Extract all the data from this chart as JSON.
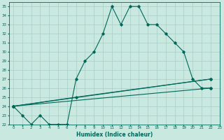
{
  "xlabel": "Humidex (Indice chaleur)",
  "bg_color": "#c8e8e0",
  "grid_color": "#a8ccc8",
  "line_color": "#006858",
  "xlim": [
    -0.5,
    23
  ],
  "ylim": [
    22,
    35.5
  ],
  "xticks": [
    0,
    1,
    2,
    3,
    4,
    5,
    6,
    7,
    8,
    9,
    10,
    11,
    12,
    13,
    14,
    15,
    16,
    17,
    18,
    19,
    20,
    21,
    22,
    23
  ],
  "yticks": [
    22,
    23,
    24,
    25,
    26,
    27,
    28,
    29,
    30,
    31,
    32,
    33,
    34,
    35
  ],
  "series1_x": [
    0,
    1,
    2,
    3,
    4,
    5,
    6,
    7,
    8,
    9,
    10,
    11,
    12,
    13,
    14,
    15,
    16,
    17,
    18,
    19,
    20,
    21,
    22
  ],
  "series1_y": [
    24,
    23,
    22,
    23,
    22,
    22,
    22,
    27,
    29,
    30,
    32,
    35,
    33,
    35,
    35,
    33,
    33,
    32,
    31,
    30,
    27,
    26,
    26
  ],
  "series2_x": [
    0,
    22
  ],
  "series2_y": [
    24,
    26
  ],
  "series3_x": [
    0,
    22
  ],
  "series3_y": [
    24,
    27
  ],
  "series4_x": [
    0,
    7,
    22
  ],
  "series4_y": [
    24,
    25,
    27
  ]
}
